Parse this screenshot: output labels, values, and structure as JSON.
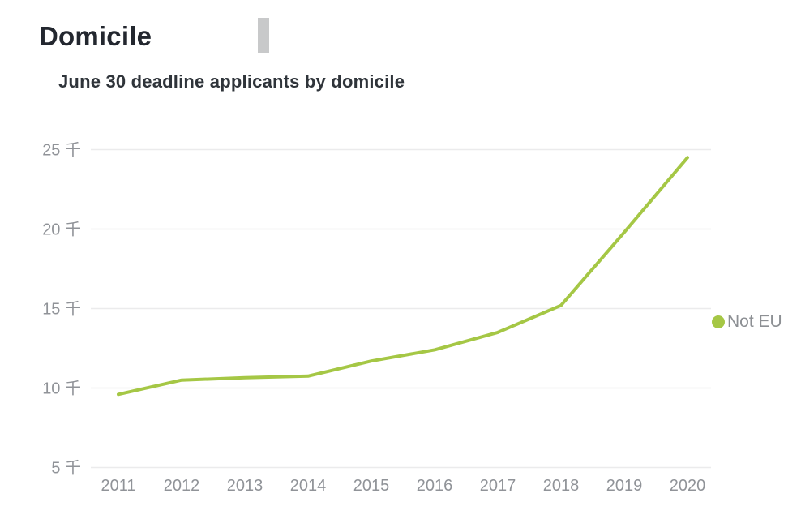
{
  "header": {
    "title": "Domicile",
    "subtitle": "June 30 deadline applicants by domicile"
  },
  "legend": {
    "label": "Not EU"
  },
  "colors": {
    "series_line": "#a5c745",
    "gridline": "#ebebec",
    "axis_label": "#909398",
    "title_text": "#23272f",
    "subtitle_text": "#2f343a",
    "legend_text": "#8d9094",
    "scrollbar": "#c8c9ca"
  },
  "chart_data": {
    "type": "line",
    "title": "Domicile",
    "subtitle": "June 30 deadline applicants by domicile",
    "x": [
      "2011",
      "2012",
      "2013",
      "2014",
      "2015",
      "2016",
      "2017",
      "2018",
      "2019",
      "2020"
    ],
    "series": [
      {
        "name": "Not EU",
        "color": "#a5c745",
        "values_thousands": [
          9.6,
          10.5,
          10.65,
          10.75,
          11.7,
          12.4,
          13.5,
          15.2,
          19.8,
          24.5
        ]
      }
    ],
    "y_unit": "千",
    "yticks": [
      5,
      10,
      15,
      20,
      25
    ],
    "ytick_labels": [
      "5 千",
      "10 千",
      "15 千",
      "20 千",
      "25 千"
    ],
    "xlabel": "",
    "ylabel": "",
    "ylim": [
      5,
      25
    ],
    "grid": true,
    "legend_position": "right-middle"
  }
}
